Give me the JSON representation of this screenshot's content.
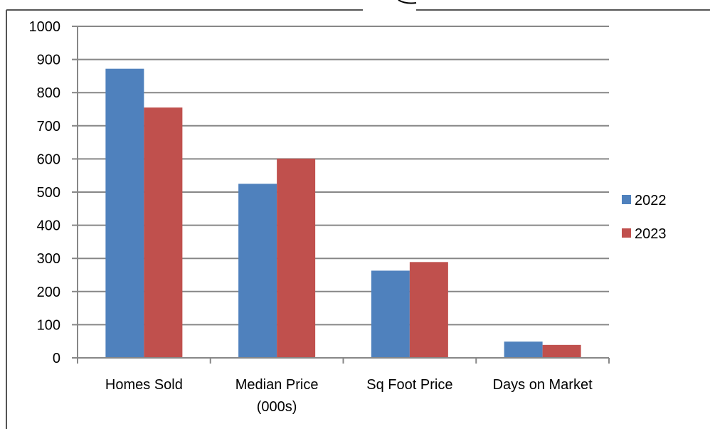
{
  "chart_data": {
    "type": "bar",
    "categories": [
      "Homes Sold",
      "Median Price (000s)",
      "Sq Foot Price",
      "Days on Market"
    ],
    "category_lines": [
      [
        "Homes Sold"
      ],
      [
        "Median Price",
        "(000s)"
      ],
      [
        "Sq Foot Price"
      ],
      [
        "Days on Market"
      ]
    ],
    "series": [
      {
        "name": "2022",
        "color": "#4F81BD",
        "values": [
          872,
          525,
          263,
          49
        ]
      },
      {
        "name": "2023",
        "color": "#C0504D",
        "values": [
          755,
          601,
          289,
          39
        ]
      }
    ],
    "ylim": [
      0,
      1000
    ],
    "yticks": [
      0,
      100,
      200,
      300,
      400,
      500,
      600,
      700,
      800,
      900,
      1000
    ],
    "grid": true,
    "legend_position": "right",
    "title": "",
    "xlabel": "",
    "ylabel": ""
  }
}
